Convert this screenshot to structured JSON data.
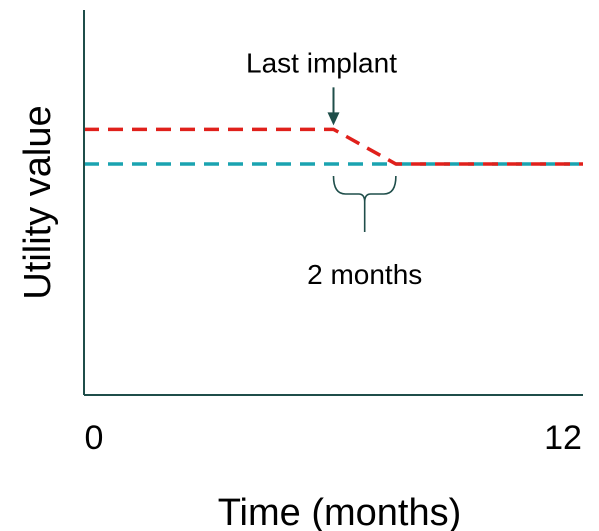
{
  "chart_data": {
    "type": "line",
    "xlabel": "Time (months)",
    "ylabel": "Utility value",
    "xlim": [
      0,
      12
    ],
    "ylim": [
      0,
      1
    ],
    "x_ticks": [
      "0",
      "12"
    ],
    "grid": false,
    "series": [
      {
        "color": "#e0201b",
        "x": [
          0,
          6,
          7.5,
          12
        ],
        "y": [
          0.69,
          0.69,
          0.6,
          0.6
        ]
      },
      {
        "color": "#1aa3b0",
        "x": [
          0,
          12
        ],
        "y": [
          0.6,
          0.6
        ]
      }
    ],
    "annotations": [
      {
        "id": "last-implant",
        "text": "Last implant",
        "x": 6,
        "y": 0.69
      },
      {
        "id": "duration",
        "text": "2 months",
        "x_start": 6,
        "x_end": 7.5,
        "y": 0.6
      }
    ]
  }
}
